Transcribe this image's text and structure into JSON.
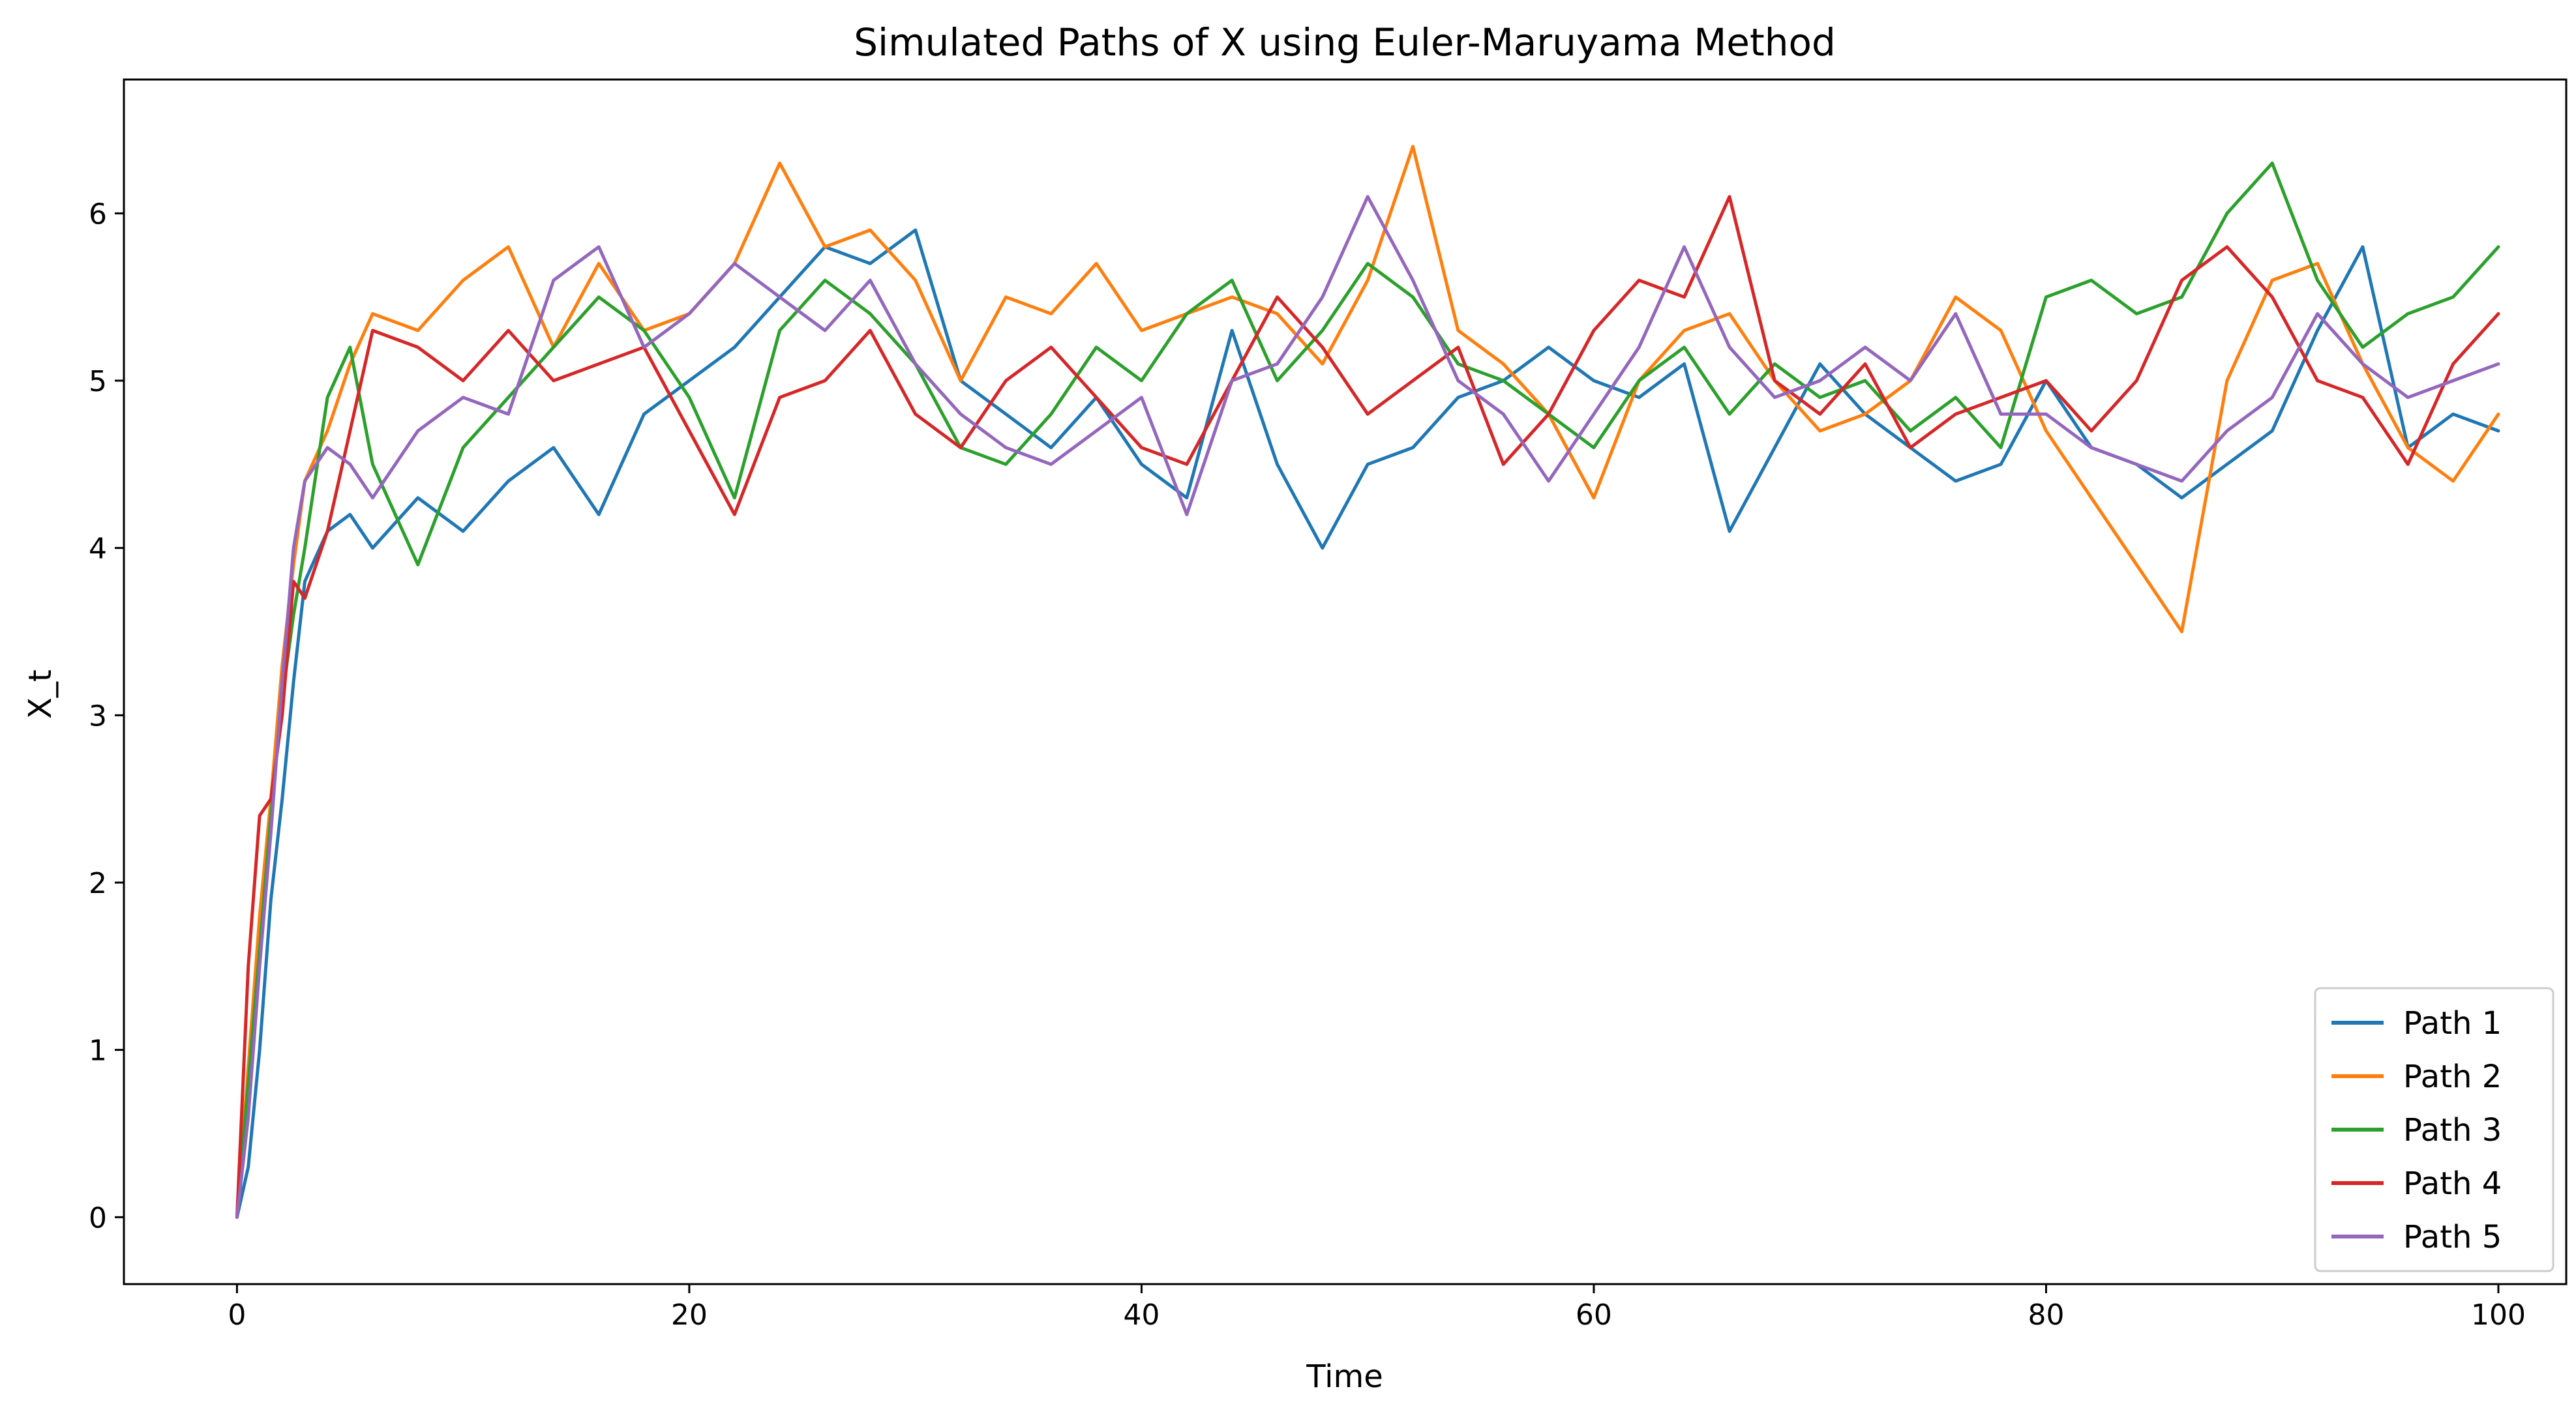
{
  "chart_data": {
    "type": "line",
    "title": "Simulated Paths of X using Euler-Maruyama Method",
    "xlabel": "Time",
    "ylabel": "X_t",
    "xlim": [
      -5,
      103
    ],
    "ylim": [
      -0.4,
      6.8
    ],
    "xticks": [
      0,
      20,
      40,
      60,
      80,
      100
    ],
    "yticks": [
      0,
      1,
      2,
      3,
      4,
      5,
      6
    ],
    "grid": false,
    "legend_position": "bottom-right",
    "x": [
      0,
      0.5,
      1,
      1.5,
      2,
      2.5,
      3,
      4,
      5,
      6,
      8,
      10,
      12,
      14,
      16,
      18,
      20,
      22,
      24,
      26,
      28,
      30,
      32,
      34,
      36,
      38,
      40,
      42,
      44,
      46,
      48,
      50,
      52,
      54,
      56,
      58,
      60,
      62,
      64,
      66,
      68,
      70,
      72,
      74,
      76,
      78,
      80,
      82,
      84,
      86,
      88,
      90,
      92,
      94,
      96,
      98,
      100
    ],
    "series": [
      {
        "name": "Path 1",
        "color": "#1f77b4",
        "values": [
          0.0,
          0.3,
          1.0,
          1.9,
          2.5,
          3.2,
          3.8,
          4.1,
          4.2,
          4.0,
          4.3,
          4.1,
          4.4,
          4.6,
          4.2,
          4.8,
          5.0,
          5.2,
          5.5,
          5.8,
          5.7,
          5.9,
          5.0,
          4.8,
          4.6,
          4.9,
          4.5,
          4.3,
          5.3,
          4.5,
          4.0,
          4.5,
          4.6,
          4.9,
          5.0,
          5.2,
          5.0,
          4.9,
          5.1,
          4.1,
          4.6,
          5.1,
          4.8,
          4.6,
          4.4,
          4.5,
          5.0,
          4.6,
          4.5,
          4.3,
          4.5,
          4.7,
          5.3,
          5.8,
          4.6,
          4.8,
          4.7
        ]
      },
      {
        "name": "Path 2",
        "color": "#ff7f0e",
        "values": [
          0.0,
          0.9,
          1.8,
          2.5,
          3.3,
          3.9,
          4.4,
          4.7,
          5.1,
          5.4,
          5.3,
          5.6,
          5.8,
          5.2,
          5.7,
          5.3,
          5.4,
          5.7,
          6.3,
          5.8,
          5.9,
          5.6,
          5.0,
          5.5,
          5.4,
          5.7,
          5.3,
          5.4,
          5.5,
          5.4,
          5.1,
          5.6,
          6.4,
          5.3,
          5.1,
          4.8,
          4.3,
          5.0,
          5.3,
          5.4,
          5.0,
          4.7,
          4.8,
          5.0,
          5.5,
          5.3,
          4.7,
          4.3,
          3.9,
          3.5,
          5.0,
          5.6,
          5.7,
          5.1,
          4.6,
          4.4,
          4.8
        ]
      },
      {
        "name": "Path 3",
        "color": "#2ca02c",
        "values": [
          0.0,
          0.8,
          1.6,
          2.4,
          3.1,
          3.6,
          4.0,
          4.9,
          5.2,
          4.5,
          3.9,
          4.6,
          4.9,
          5.2,
          5.5,
          5.3,
          4.9,
          4.3,
          5.3,
          5.6,
          5.4,
          5.1,
          4.6,
          4.5,
          4.8,
          5.2,
          5.0,
          5.4,
          5.6,
          5.0,
          5.3,
          5.7,
          5.5,
          5.1,
          5.0,
          4.8,
          4.6,
          5.0,
          5.2,
          4.8,
          5.1,
          4.9,
          5.0,
          4.7,
          4.9,
          4.6,
          5.5,
          5.6,
          5.4,
          5.5,
          6.0,
          6.3,
          5.6,
          5.2,
          5.4,
          5.5,
          5.8
        ]
      },
      {
        "name": "Path 4",
        "color": "#d62728",
        "values": [
          0.0,
          1.5,
          2.4,
          2.5,
          3.0,
          3.8,
          3.7,
          4.1,
          4.7,
          5.3,
          5.2,
          5.0,
          5.3,
          5.0,
          5.1,
          5.2,
          4.7,
          4.2,
          4.9,
          5.0,
          5.3,
          4.8,
          4.6,
          5.0,
          5.2,
          4.9,
          4.6,
          4.5,
          5.0,
          5.5,
          5.2,
          4.8,
          5.0,
          5.2,
          4.5,
          4.8,
          5.3,
          5.6,
          5.5,
          6.1,
          5.0,
          4.8,
          5.1,
          4.6,
          4.8,
          4.9,
          5.0,
          4.7,
          5.0,
          5.6,
          5.8,
          5.5,
          5.0,
          4.9,
          4.5,
          5.1,
          5.4
        ]
      },
      {
        "name": "Path 5",
        "color": "#9467bd",
        "values": [
          0.0,
          0.6,
          1.5,
          2.3,
          3.2,
          4.0,
          4.4,
          4.6,
          4.5,
          4.3,
          4.7,
          4.9,
          4.8,
          5.6,
          5.8,
          5.2,
          5.4,
          5.7,
          5.5,
          5.3,
          5.6,
          5.1,
          4.8,
          4.6,
          4.5,
          4.7,
          4.9,
          4.2,
          5.0,
          5.1,
          5.5,
          6.1,
          5.6,
          5.0,
          4.8,
          4.4,
          4.8,
          5.2,
          5.8,
          5.2,
          4.9,
          5.0,
          5.2,
          5.0,
          5.4,
          4.8,
          4.8,
          4.6,
          4.5,
          4.4,
          4.7,
          4.9,
          5.4,
          5.1,
          4.9,
          5.0,
          5.1
        ]
      }
    ]
  }
}
